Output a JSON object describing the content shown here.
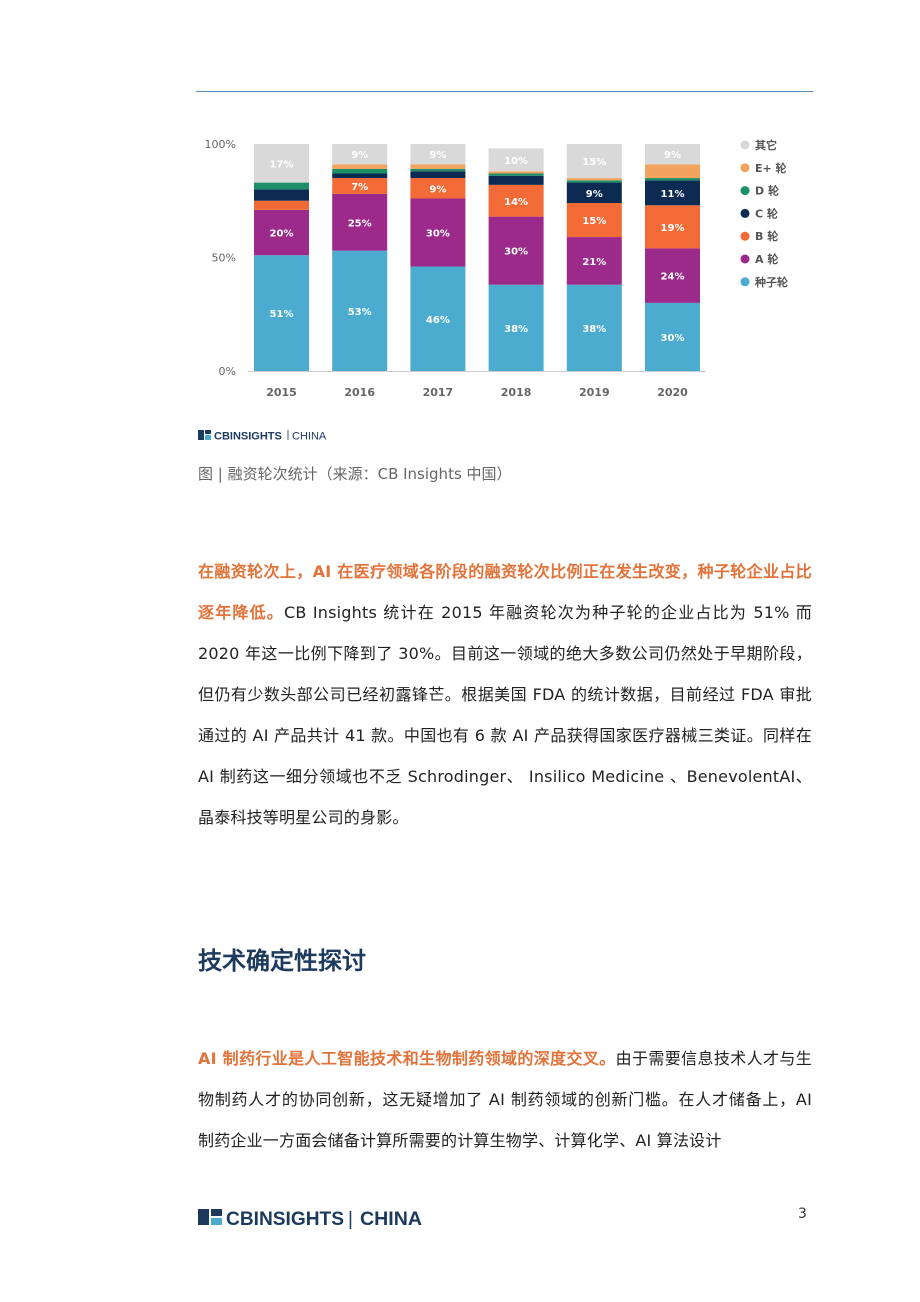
{
  "chart_data": {
    "type": "bar",
    "stacked": true,
    "normalized": true,
    "categories": [
      "2015",
      "2016",
      "2017",
      "2018",
      "2019",
      "2020"
    ],
    "yticks": [
      "100%",
      "50%",
      "0%"
    ],
    "ylim": [
      0,
      100
    ],
    "legend_position": "right",
    "series": [
      {
        "name": "种子轮",
        "color": "#4bacd0",
        "values": [
          51,
          53,
          46,
          38,
          38,
          30
        ],
        "labels": [
          "51%",
          "53%",
          "46%",
          "38%",
          "38%",
          "30%"
        ]
      },
      {
        "name": "A 轮",
        "color": "#9b2a8b",
        "values": [
          20,
          25,
          30,
          30,
          21,
          24
        ],
        "labels": [
          "20%",
          "25%",
          "30%",
          "30%",
          "21%",
          "24%"
        ]
      },
      {
        "name": "B 轮",
        "color": "#f26b36",
        "values": [
          4,
          7,
          9,
          14,
          15,
          19
        ],
        "labels": [
          "",
          "7%",
          "9%",
          "14%",
          "15%",
          "19%"
        ]
      },
      {
        "name": "C 轮",
        "color": "#0d2b52",
        "values": [
          5,
          2,
          3,
          4,
          9,
          11
        ],
        "labels": [
          "",
          "",
          "",
          "",
          "9%",
          "11%"
        ]
      },
      {
        "name": "D 轮",
        "color": "#1a8f6a",
        "values": [
          3,
          2,
          1,
          1,
          1,
          1
        ],
        "labels": [
          "",
          "",
          "",
          "",
          "",
          ""
        ]
      },
      {
        "name": "E+ 轮",
        "color": "#f2a35e",
        "values": [
          0,
          2,
          2,
          1,
          1,
          6
        ],
        "labels": [
          "",
          "",
          "",
          "",
          "",
          ""
        ]
      },
      {
        "name": "其它",
        "color": "#d9d9d9",
        "values": [
          17,
          9,
          9,
          10,
          15,
          9
        ],
        "labels": [
          "17%",
          "9%",
          "9%",
          "10%",
          "15%",
          "9%"
        ]
      }
    ]
  },
  "colors": {
    "highlight": "#e2733a",
    "heading": "#1c3a5e",
    "logo_blue": "#1c3a5e",
    "logo_accent": "#4bacd0"
  },
  "chart_logo": {
    "brand": "CBINSIGHTS",
    "suffix": "CHINA"
  },
  "caption": "图 | 融资轮次统计（来源：CB Insights 中国）",
  "para1": {
    "highlight": "在融资轮次上，AI 在医疗领域各阶段的融资轮次比例正在发生改变，种子轮企业占比逐年降低。",
    "text": "CB Insights 统计在 2015 年融资轮次为种子轮的企业占比为 51% 而 2020 年这一比例下降到了 30%。目前这一领域的绝大多数公司仍然处于早期阶段，但仍有少数头部公司已经初露锋芒。根据美国 FDA 的统计数据，目前经过 FDA 审批通过的 AI 产品共计 41 款。中国也有 6 款 AI 产品获得国家医疗器械三类证。同样在 AI 制药这一细分领域也不乏 Schrodinger、 Insilico Medicine 、BenevolentAI、晶泰科技等明星公司的身影。"
  },
  "section_heading": "技术确定性探讨",
  "para2": {
    "highlight": "AI 制药行业是人工智能技术和生物制药领域的深度交叉。",
    "text": "由于需要信息技术人才与生物制药人才的协同创新，这无疑增加了 AI 制药领域的创新门槛。在人才储备上，AI 制药企业一方面会储备计算所需要的计算生物学、计算化学、AI 算法设计"
  },
  "footer": {
    "brand": "CBINSIGHTS",
    "separator": "|",
    "suffix": "CHINA",
    "page_number": "3"
  }
}
